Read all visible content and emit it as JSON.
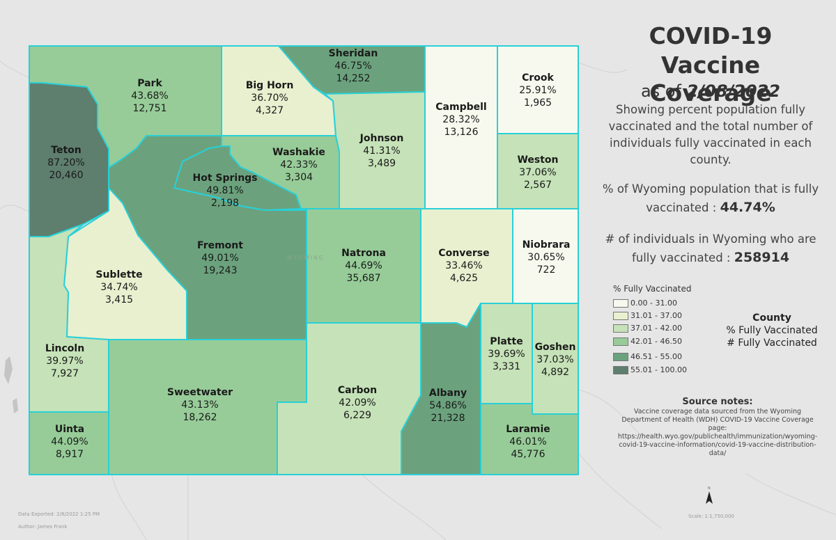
{
  "title": {
    "line1": "COVID-19",
    "line2": "Vaccine Coverage",
    "as_of_prefix": "as of ",
    "as_of_date": "2/08/2022",
    "description": "Showing percent population fully vaccinated and the total number of individuals fully vaccinated in each county."
  },
  "stats": {
    "pct_label": "% of Wyoming population that is fully vaccinated : ",
    "pct_value": "44.74%",
    "count_label": "# of individuals in Wyoming who are fully vaccinated : ",
    "count_value": "258914"
  },
  "map_label": "WYOMING",
  "legend": {
    "title": "% Fully Vaccinated",
    "classes": [
      {
        "label": "0.00 - 31.00",
        "color": "#f7f9ee"
      },
      {
        "label": "31.01 - 37.00",
        "color": "#e9f0d0"
      },
      {
        "label": "37.01 - 42.00",
        "color": "#c6e2b8"
      },
      {
        "label": "42.01 - 46.50",
        "color": "#97cc98"
      },
      {
        "label": "46.51 - 55.00",
        "color": "#6ba27d"
      },
      {
        "label": "55.01 - 100.00",
        "color": "#5e7e6e"
      }
    ]
  },
  "county_legend": {
    "title": "County",
    "pct": "% Fully Vaccinated",
    "count": "# Fully Vaccinated"
  },
  "counties": [
    {
      "name": "Park",
      "pct": "43.68%",
      "count": "12,751"
    },
    {
      "name": "Big Horn",
      "pct": "36.70%",
      "count": "4,327"
    },
    {
      "name": "Sheridan",
      "pct": "46.75%",
      "count": "14,252"
    },
    {
      "name": "Campbell",
      "pct": "28.32%",
      "count": "13,126"
    },
    {
      "name": "Crook",
      "pct": "25.91%",
      "count": "1,965"
    },
    {
      "name": "Teton",
      "pct": "87.20%",
      "count": "20,460"
    },
    {
      "name": "Washakie",
      "pct": "42.33%",
      "count": "3,304"
    },
    {
      "name": "Johnson",
      "pct": "41.31%",
      "count": "3,489"
    },
    {
      "name": "Weston",
      "pct": "37.06%",
      "count": "2,567"
    },
    {
      "name": "Hot Springs",
      "pct": "49.81%",
      "count": "2,198"
    },
    {
      "name": "Fremont",
      "pct": "49.01%",
      "count": "19,243"
    },
    {
      "name": "Natrona",
      "pct": "44.69%",
      "count": "35,687"
    },
    {
      "name": "Converse",
      "pct": "33.46%",
      "count": "4,625"
    },
    {
      "name": "Niobrara",
      "pct": "30.65%",
      "count": "722"
    },
    {
      "name": "Sublette",
      "pct": "34.74%",
      "count": "3,415"
    },
    {
      "name": "Lincoln",
      "pct": "39.97%",
      "count": "7,927"
    },
    {
      "name": "Platte",
      "pct": "39.69%",
      "count": "3,331"
    },
    {
      "name": "Goshen",
      "pct": "37.03%",
      "count": "4,892"
    },
    {
      "name": "Sweetwater",
      "pct": "43.13%",
      "count": "18,262"
    },
    {
      "name": "Carbon",
      "pct": "42.09%",
      "count": "6,229"
    },
    {
      "name": "Albany",
      "pct": "54.86%",
      "count": "21,328"
    },
    {
      "name": "Laramie",
      "pct": "46.01%",
      "count": "45,776"
    },
    {
      "name": "Uinta",
      "pct": "44.09%",
      "count": "8,917"
    }
  ],
  "source": {
    "title": "Source notes:",
    "body": "Vaccine coverage data sourced from the Wyoming Department of Health (WDH) COVID-19 Vaccine Coverage page: https://health.wyo.gov/publichealth/immunization/wyoming-covid-19-vaccine-information/covid-19-vaccine-distribution-data/"
  },
  "footer": {
    "exported": "Data Exported: 2/8/2022 1:25 PM",
    "author": "Author: James Frank",
    "scale": "Scale: 1:1,750,000",
    "north": "N"
  }
}
